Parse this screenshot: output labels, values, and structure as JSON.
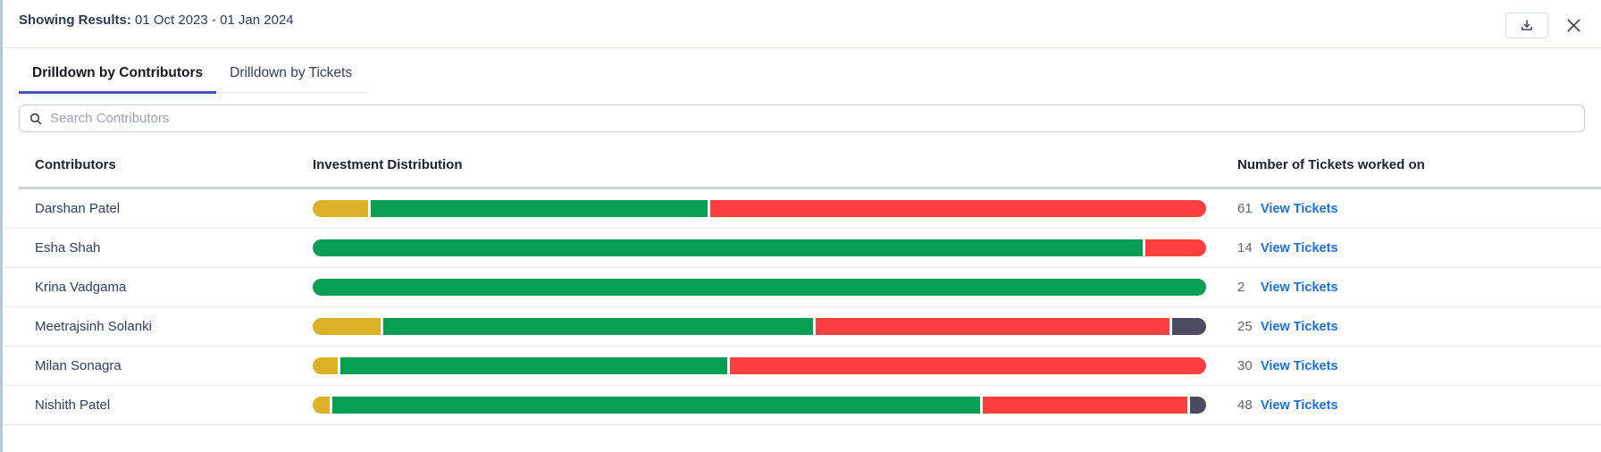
{
  "topbar": {
    "results_label": "Showing Results:",
    "date_range": "01 Oct 2023 - 01 Jan 2024"
  },
  "tabs": [
    {
      "label": "Drilldown by Contributors",
      "active": true
    },
    {
      "label": "Drilldown by Tickets",
      "active": false
    }
  ],
  "search": {
    "placeholder": "Search Contributors"
  },
  "table": {
    "columns": {
      "contributors": "Contributors",
      "distribution": "Investment Distribution",
      "tickets": "Number of Tickets worked on"
    },
    "view_tickets_label": "View Tickets",
    "rows": [
      {
        "name": "Darshan Patel",
        "tickets": "61",
        "segments": [
          {
            "type": "yellow",
            "share": 62
          },
          {
            "type": "green",
            "share": 378
          },
          {
            "type": "red",
            "share": 556
          }
        ]
      },
      {
        "name": "Esha Shah",
        "tickets": "14",
        "segments": [
          {
            "type": "green",
            "share": 930
          },
          {
            "type": "red",
            "share": 68
          }
        ]
      },
      {
        "name": "Krina Vadgama",
        "tickets": "2",
        "segments": [
          {
            "type": "green",
            "share": 1000
          }
        ]
      },
      {
        "name": "Meetrajsinh Solanki",
        "tickets": "25",
        "segments": [
          {
            "type": "yellow",
            "share": 76
          },
          {
            "type": "green",
            "share": 480
          },
          {
            "type": "red",
            "share": 395
          },
          {
            "type": "dark",
            "share": 38
          }
        ]
      },
      {
        "name": "Milan Sonagra",
        "tickets": "30",
        "segments": [
          {
            "type": "yellow",
            "share": 28
          },
          {
            "type": "green",
            "share": 433
          },
          {
            "type": "red",
            "share": 533
          }
        ]
      },
      {
        "name": "Nishith Patel",
        "tickets": "48",
        "segments": [
          {
            "type": "yellow",
            "share": 19
          },
          {
            "type": "green",
            "share": 726
          },
          {
            "type": "red",
            "share": 229
          },
          {
            "type": "dark",
            "share": 18
          }
        ]
      }
    ]
  },
  "colors": {
    "bar_yellow": "#DBB226",
    "bar_green": "#089E53",
    "bar_red": "#FB3E3E",
    "bar_dark": "#4A4B60",
    "accent_tab": "#4252C7",
    "link_blue": "#1C6FDF"
  }
}
